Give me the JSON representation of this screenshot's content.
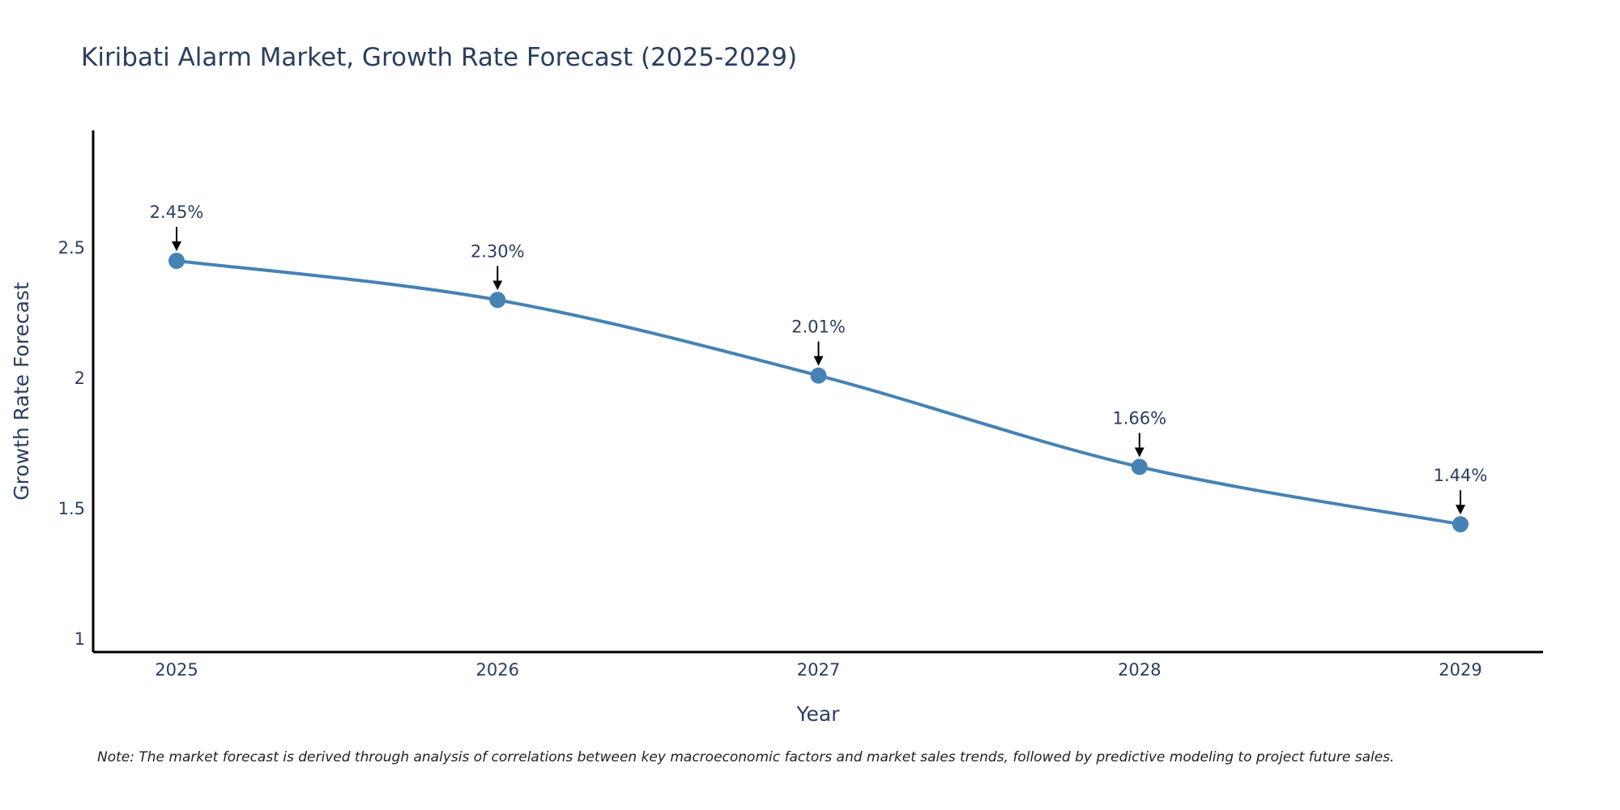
{
  "chart_data": {
    "type": "line",
    "title": "Kiribati Alarm Market, Growth Rate Forecast (2025-2029)",
    "xlabel": "Year",
    "ylabel": "Growth Rate Forecast",
    "categories": [
      "2025",
      "2026",
      "2027",
      "2028",
      "2029"
    ],
    "series": [
      {
        "name": "Growth Rate Forecast",
        "values": [
          2.45,
          2.3,
          2.01,
          1.66,
          1.44
        ],
        "labels": [
          "2.45%",
          "2.30%",
          "2.01%",
          "1.66%",
          "1.44%"
        ]
      }
    ],
    "ylim": [
      0.95,
      2.95
    ],
    "yticks": [
      1,
      1.5,
      2,
      2.5
    ],
    "ytick_labels": [
      "1",
      "1.5",
      "2",
      "2.5"
    ],
    "grid": false,
    "line_shape": "spline",
    "colors": {
      "line": "#4682b4",
      "marker": "#4682b4",
      "axis": "#000000",
      "text": "#2a3f5f",
      "arrow": "#000000"
    },
    "note": "Note: The market forecast is derived through analysis of correlations between key macroeconomic factors and market sales trends, followed by predictive modeling to project future sales."
  }
}
